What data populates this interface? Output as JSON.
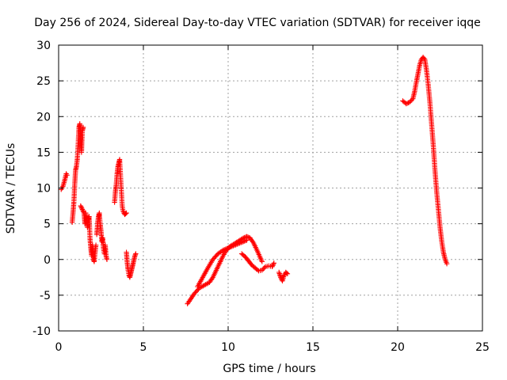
{
  "chart_data": {
    "type": "scatter",
    "title": "Day 256 of 2024, Sidereal Day-to-day VTEC variation (SDTVAR) for receiver iqqe",
    "xlabel": "GPS time / hours",
    "ylabel": "SDTVAR / TECUs",
    "xlim": [
      0,
      25
    ],
    "ylim": [
      -10,
      30
    ],
    "xticks": [
      "0",
      "5",
      "10",
      "15",
      "20",
      "25"
    ],
    "yticks": [
      "-10",
      "-5",
      "0",
      "5",
      "10",
      "15",
      "20",
      "25",
      "30"
    ],
    "grid": true,
    "marker": "+",
    "color": "#ff0000",
    "series": [
      {
        "name": "SDTVAR",
        "segments": [
          [
            [
              0.15,
              9.8
            ],
            [
              0.25,
              10.2
            ],
            [
              0.35,
              11.0
            ],
            [
              0.45,
              12.0
            ],
            [
              0.5,
              11.8
            ]
          ],
          [
            [
              0.8,
              5.2
            ],
            [
              0.85,
              6.5
            ],
            [
              0.9,
              8.0
            ],
            [
              0.95,
              10.5
            ],
            [
              1.0,
              12.5
            ],
            [
              1.05,
              13.0
            ],
            [
              1.1,
              14.0
            ],
            [
              1.15,
              16.0
            ],
            [
              1.2,
              18.5
            ],
            [
              1.25,
              19.0
            ],
            [
              1.3,
              17.0
            ],
            [
              1.35,
              15.0
            ],
            [
              1.4,
              18.0
            ],
            [
              1.45,
              18.5
            ]
          ],
          [
            [
              1.3,
              7.5
            ],
            [
              1.4,
              7.0
            ],
            [
              1.5,
              6.5
            ],
            [
              1.55,
              5.0
            ],
            [
              1.6,
              6.5
            ],
            [
              1.65,
              5.5
            ],
            [
              1.7,
              4.5
            ],
            [
              1.75,
              5.5
            ],
            [
              1.8,
              6.0
            ],
            [
              1.85,
              3.0
            ],
            [
              1.9,
              1.5
            ],
            [
              1.95,
              0.5
            ],
            [
              2.0,
              2.0
            ],
            [
              2.05,
              0.0
            ],
            [
              2.1,
              -0.3
            ],
            [
              2.15,
              1.0
            ],
            [
              2.2,
              2.0
            ]
          ],
          [
            [
              2.25,
              3.5
            ],
            [
              2.3,
              5.0
            ],
            [
              2.35,
              6.0
            ],
            [
              2.4,
              6.5
            ],
            [
              2.45,
              5.0
            ],
            [
              2.5,
              4.0
            ],
            [
              2.55,
              2.5
            ],
            [
              2.6,
              3.0
            ],
            [
              2.65,
              1.5
            ],
            [
              2.7,
              0.8
            ],
            [
              2.75,
              2.0
            ],
            [
              2.8,
              0.5
            ],
            [
              2.85,
              0.0
            ]
          ],
          [
            [
              3.3,
              8.0
            ],
            [
              3.35,
              9.5
            ],
            [
              3.4,
              10.5
            ],
            [
              3.45,
              12.0
            ],
            [
              3.5,
              13.0
            ],
            [
              3.55,
              13.5
            ],
            [
              3.6,
              14.0
            ],
            [
              3.75,
              7.5
            ],
            [
              3.8,
              6.8
            ],
            [
              3.9,
              6.3
            ],
            [
              4.0,
              6.5
            ]
          ],
          [
            [
              4.0,
              1.0
            ],
            [
              4.05,
              -0.5
            ],
            [
              4.1,
              -1.5
            ],
            [
              4.15,
              -2.2
            ],
            [
              4.2,
              -2.5
            ],
            [
              4.25,
              -2.0
            ],
            [
              4.3,
              -1.5
            ],
            [
              4.35,
              -1.0
            ],
            [
              4.4,
              -0.5
            ],
            [
              4.45,
              0.0
            ],
            [
              4.5,
              0.5
            ],
            [
              4.55,
              0.8
            ]
          ],
          [
            [
              7.6,
              -6.2
            ],
            [
              7.8,
              -5.5
            ],
            [
              8.0,
              -4.8
            ],
            [
              8.3,
              -4.0
            ],
            [
              8.6,
              -3.6
            ],
            [
              8.9,
              -3.2
            ],
            [
              9.1,
              -2.5
            ],
            [
              9.3,
              -1.5
            ],
            [
              9.5,
              -0.5
            ],
            [
              9.7,
              0.5
            ],
            [
              9.9,
              1.3
            ],
            [
              10.1,
              1.8
            ],
            [
              10.3,
              2.1
            ],
            [
              10.5,
              2.4
            ],
            [
              10.7,
              2.7
            ],
            [
              10.9,
              3.0
            ],
            [
              11.1,
              3.2
            ],
            [
              11.3,
              3.0
            ],
            [
              11.5,
              2.3
            ],
            [
              11.7,
              1.3
            ],
            [
              11.85,
              0.5
            ],
            [
              12.0,
              -0.3
            ]
          ],
          [
            [
              8.2,
              -3.8
            ],
            [
              8.5,
              -2.5
            ],
            [
              8.8,
              -1.2
            ],
            [
              9.1,
              0.0
            ],
            [
              9.4,
              0.8
            ],
            [
              9.7,
              1.3
            ],
            [
              10.0,
              1.6
            ],
            [
              10.3,
              1.9
            ],
            [
              10.6,
              2.2
            ],
            [
              10.9,
              2.5
            ],
            [
              11.1,
              2.7
            ]
          ],
          [
            [
              10.8,
              0.8
            ],
            [
              11.0,
              0.4
            ],
            [
              11.2,
              -0.2
            ],
            [
              11.4,
              -0.8
            ],
            [
              11.6,
              -1.2
            ],
            [
              11.8,
              -1.6
            ],
            [
              12.0,
              -1.5
            ],
            [
              12.2,
              -1.0
            ],
            [
              12.4,
              -0.9
            ],
            [
              12.6,
              -1.0
            ],
            [
              12.7,
              -0.5
            ]
          ],
          [
            [
              13.0,
              -1.8
            ],
            [
              13.1,
              -2.5
            ],
            [
              13.2,
              -3.0
            ],
            [
              13.3,
              -2.2
            ],
            [
              13.4,
              -1.8
            ],
            [
              13.5,
              -2.0
            ]
          ],
          [
            [
              20.3,
              22.2
            ],
            [
              20.5,
              21.8
            ],
            [
              20.7,
              22.0
            ],
            [
              20.9,
              22.5
            ],
            [
              21.0,
              23.5
            ],
            [
              21.1,
              24.8
            ],
            [
              21.2,
              26.0
            ],
            [
              21.3,
              27.2
            ],
            [
              21.4,
              28.0
            ],
            [
              21.5,
              28.3
            ],
            [
              21.6,
              28.0
            ],
            [
              21.7,
              26.5
            ],
            [
              21.8,
              24.5
            ],
            [
              21.9,
              22.0
            ],
            [
              22.0,
              19.0
            ],
            [
              22.1,
              16.0
            ],
            [
              22.2,
              12.5
            ],
            [
              22.3,
              9.5
            ],
            [
              22.4,
              7.0
            ],
            [
              22.5,
              4.5
            ],
            [
              22.6,
              2.5
            ],
            [
              22.7,
              1.0
            ],
            [
              22.8,
              0.0
            ],
            [
              22.9,
              -0.6
            ]
          ]
        ]
      }
    ]
  }
}
